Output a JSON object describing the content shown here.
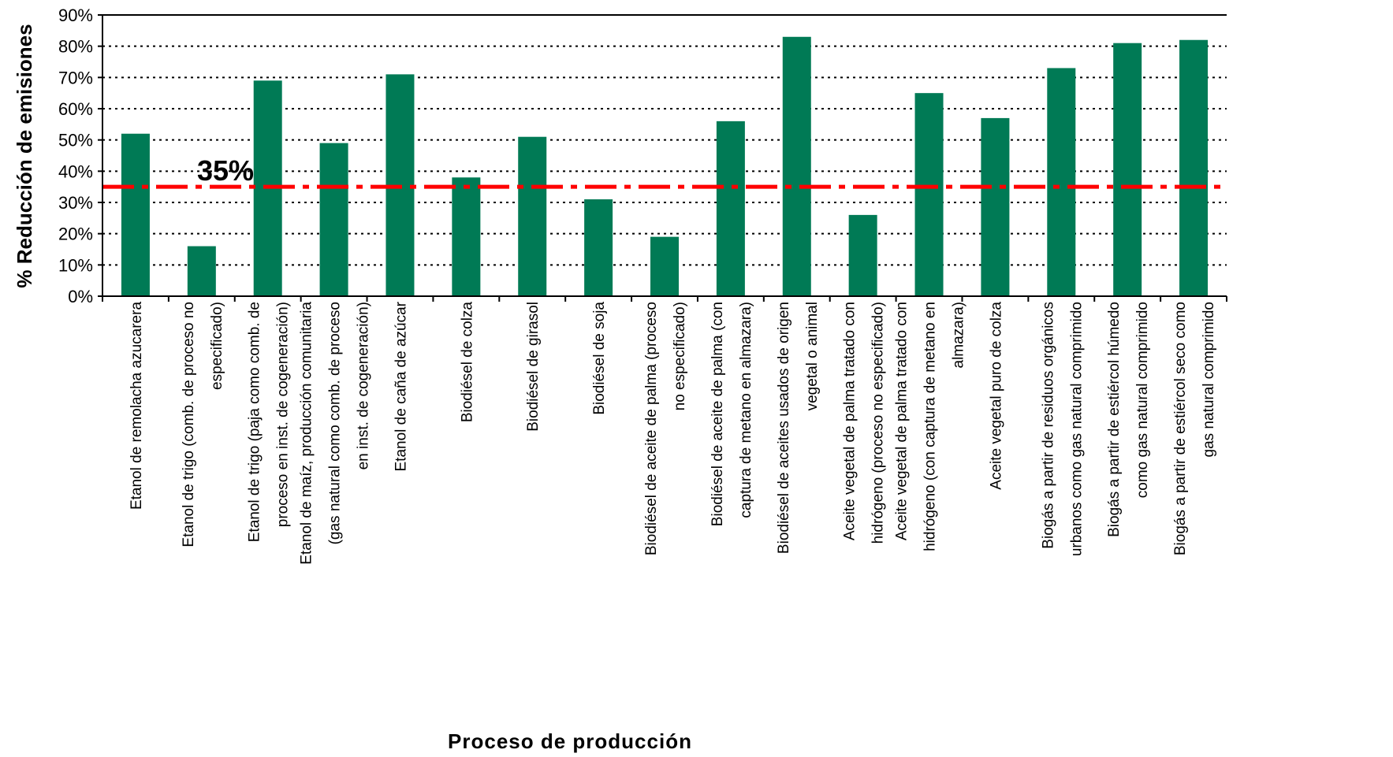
{
  "chart_data": {
    "type": "bar",
    "title": "",
    "xlabel": "Proceso de producción",
    "ylabel": "% Reducción de emisiones",
    "ylim": [
      0,
      90
    ],
    "ytick_values": [
      0,
      10,
      20,
      30,
      40,
      50,
      60,
      70,
      80,
      90
    ],
    "ytick_labels": [
      "0%",
      "10%",
      "20%",
      "30%",
      "40%",
      "50%",
      "60%",
      "70%",
      "80%",
      "90%"
    ],
    "grid": true,
    "grid_style": "dotted",
    "bar_color": "#007A55",
    "categories": [
      [
        "Etanol de remolacha azucarera"
      ],
      [
        "Etanol de trigo (comb. de proceso no",
        "especificado)"
      ],
      [
        "Etanol de trigo (paja como comb. de",
        "proceso en inst. de cogeneración)"
      ],
      [
        "Etanol de maíz, producción comunitaria",
        "(gas natural como comb. de proceso",
        "en inst. de cogeneración)"
      ],
      [
        "Etanol de caña de azúcar"
      ],
      [
        "Biodiésel de colza"
      ],
      [
        "Biodiésel de girasol"
      ],
      [
        "Biodiésel de soja"
      ],
      [
        "Biodiésel de aceite de palma (proceso",
        "no especificado)"
      ],
      [
        "Biodiésel de aceite de palma (con",
        "captura de metano en almazara)"
      ],
      [
        "Biodiésel de aceites usados de origen",
        "vegetal o animal"
      ],
      [
        "Aceite vegetal de palma tratado con",
        "hidrógeno (proceso no especificado)"
      ],
      [
        "Aceite vegetal de palma tratado con",
        "hidrógeno (con captura de metano en",
        "almazara)"
      ],
      [
        "Aceite vegetal puro de colza"
      ],
      [
        "Biogás a partir de residuos orgánicos",
        "urbanos como gas natural comprimido"
      ],
      [
        "Biogás a partir de estiércol húmedo",
        "como gas natural comprimido"
      ],
      [
        "Biogás a partir de estiércol seco como",
        "gas natural comprimido"
      ]
    ],
    "values": [
      52,
      16,
      69,
      49,
      71,
      38,
      51,
      31,
      19,
      56,
      83,
      26,
      65,
      57,
      73,
      81,
      82
    ],
    "reference_line": {
      "value": 35,
      "label": "35%",
      "color": "#FF0000",
      "style": "dash-dot"
    }
  }
}
